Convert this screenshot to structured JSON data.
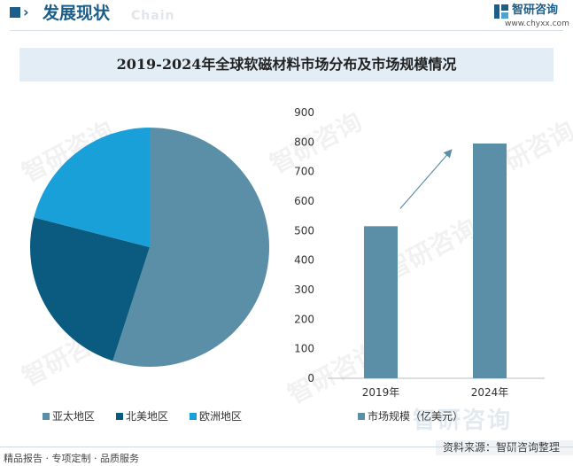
{
  "header": {
    "title": "发展现状",
    "subtitle": "Chain",
    "logo_name": "智研咨询",
    "logo_url": "www.chyxx.com"
  },
  "chart_title": "2019-2024年全球软磁材料市场分布及市场规模情况",
  "chart_data": [
    {
      "type": "pie",
      "labels": [
        "亚太地区",
        "北美地区",
        "欧洲地区"
      ],
      "values": [
        55,
        24,
        21
      ],
      "colors": [
        "#5b8fa8",
        "#0b5a80",
        "#1aa0d8"
      ],
      "legend": "bottom"
    },
    {
      "type": "bar",
      "categories": [
        "2019年",
        "2024年"
      ],
      "series": [
        {
          "name": "市场规模（亿美元）",
          "values": [
            515,
            795
          ],
          "color": "#5b8fa8"
        }
      ],
      "yticks": [
        "0",
        "100",
        "200",
        "300",
        "400",
        "500",
        "600",
        "700",
        "800",
        "900"
      ],
      "ylim": [
        0,
        900
      ],
      "grid": false,
      "legend": "bottom",
      "annotation": "growth-arrow"
    }
  ],
  "watermark": "智研咨询",
  "footer": {
    "left": "精品报告 · 专项定制 · 品质服务",
    "source": "资料来源：智研咨询整理"
  }
}
